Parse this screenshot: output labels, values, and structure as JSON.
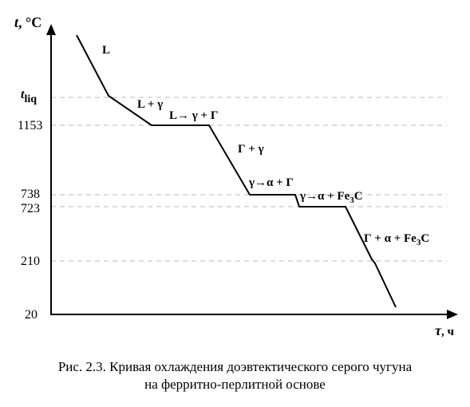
{
  "chart_data": {
    "type": "line",
    "y_axis_title": "t, °C",
    "x_axis_title": "τ, ч",
    "y_ticks": [
      "t_liq",
      "1153",
      "738",
      "723",
      "210",
      "20"
    ],
    "curve": {
      "x_segments": [
        0,
        1,
        2,
        3,
        4,
        5,
        6,
        7,
        8,
        9,
        10
      ],
      "y_values": [
        "start",
        "t_liq",
        "1153",
        "1153",
        "738",
        "738",
        "723",
        "723",
        "210",
        "20"
      ]
    },
    "region_labels": [
      "L",
      "L + γ",
      "L→ γ + Г",
      "Г + γ",
      "γ→α + Г",
      "γ→α + Fe₃C",
      "Г + α + Fe₃C"
    ],
    "grid": true
  },
  "axes": {
    "y_title": "t, °C",
    "y_title_main": "t",
    "y_title_rest": ", °C",
    "x_title_main": "τ",
    "x_title_rest": ", ч",
    "y_tick_tliq_main": "t",
    "y_tick_tliq_sub": "liq",
    "y_tick_1153": "1153",
    "y_tick_738": "738",
    "y_tick_723": "723",
    "y_tick_210": "210",
    "y_tick_20": "20"
  },
  "labels": {
    "L": "L",
    "L_gamma": "L + γ",
    "L_to_gamma_G_a": "L→ γ + Г",
    "G_gamma": "Г + γ",
    "gamma_alpha_G": "γ→α + Г",
    "gamma_alpha_Fe3C_a": "γ→α + Fe",
    "sub3": "3",
    "C": "C",
    "G_alpha_Fe3C_a": "Г + α + Fe"
  },
  "caption": {
    "line1": "Рис. 2.3. Кривая охлаждения доэвтектического серого чугуна",
    "line2": "на ферритно-перлитной основе"
  }
}
